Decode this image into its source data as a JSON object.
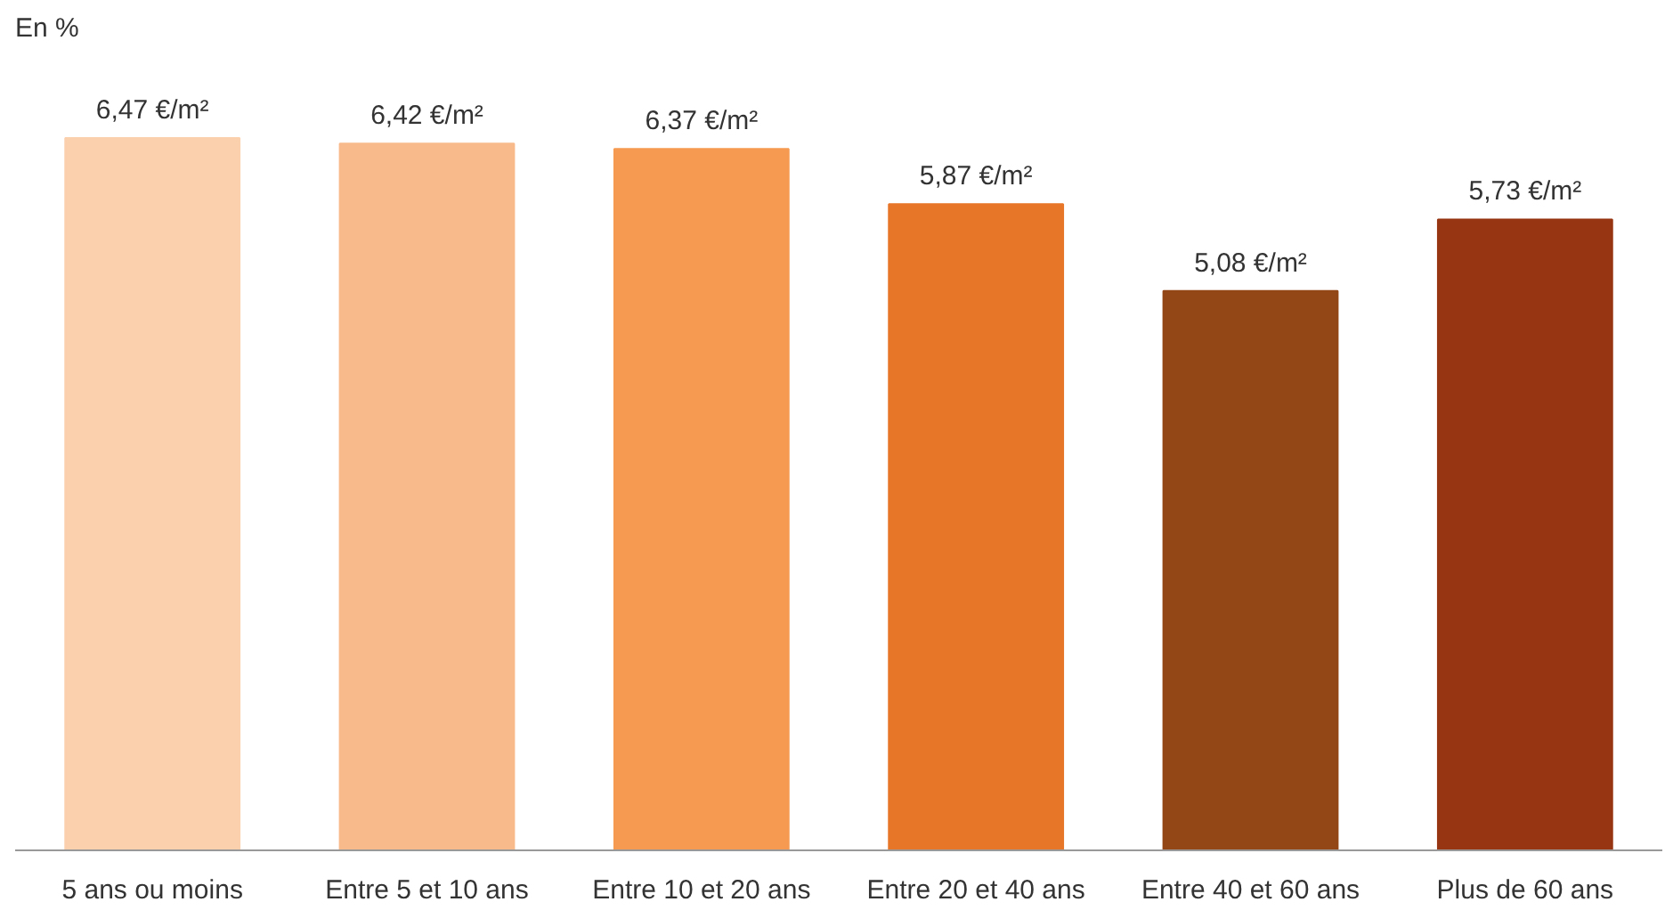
{
  "chart_data": {
    "type": "bar",
    "ylabel": "En %",
    "categories": [
      "5 ans ou moins",
      "Entre 5 et 10 ans",
      "Entre 10 et 20 ans",
      "Entre 20 et 40 ans",
      "Entre 40 et 60 ans",
      "Plus de 60 ans"
    ],
    "values": [
      6.47,
      6.42,
      6.37,
      5.87,
      5.08,
      5.73
    ],
    "colors": [
      "#fbd0ad",
      "#f9ba8b",
      "#f59a50",
      "#e87629",
      "#934616",
      "#973512"
    ],
    "value_labels": [
      "6,47 €/m²",
      "6,42 €/m²",
      "6,37 €/m²",
      "5,87 €/m²",
      "5,08 €/m²",
      "5,73 €/m²"
    ],
    "grid": false
  }
}
